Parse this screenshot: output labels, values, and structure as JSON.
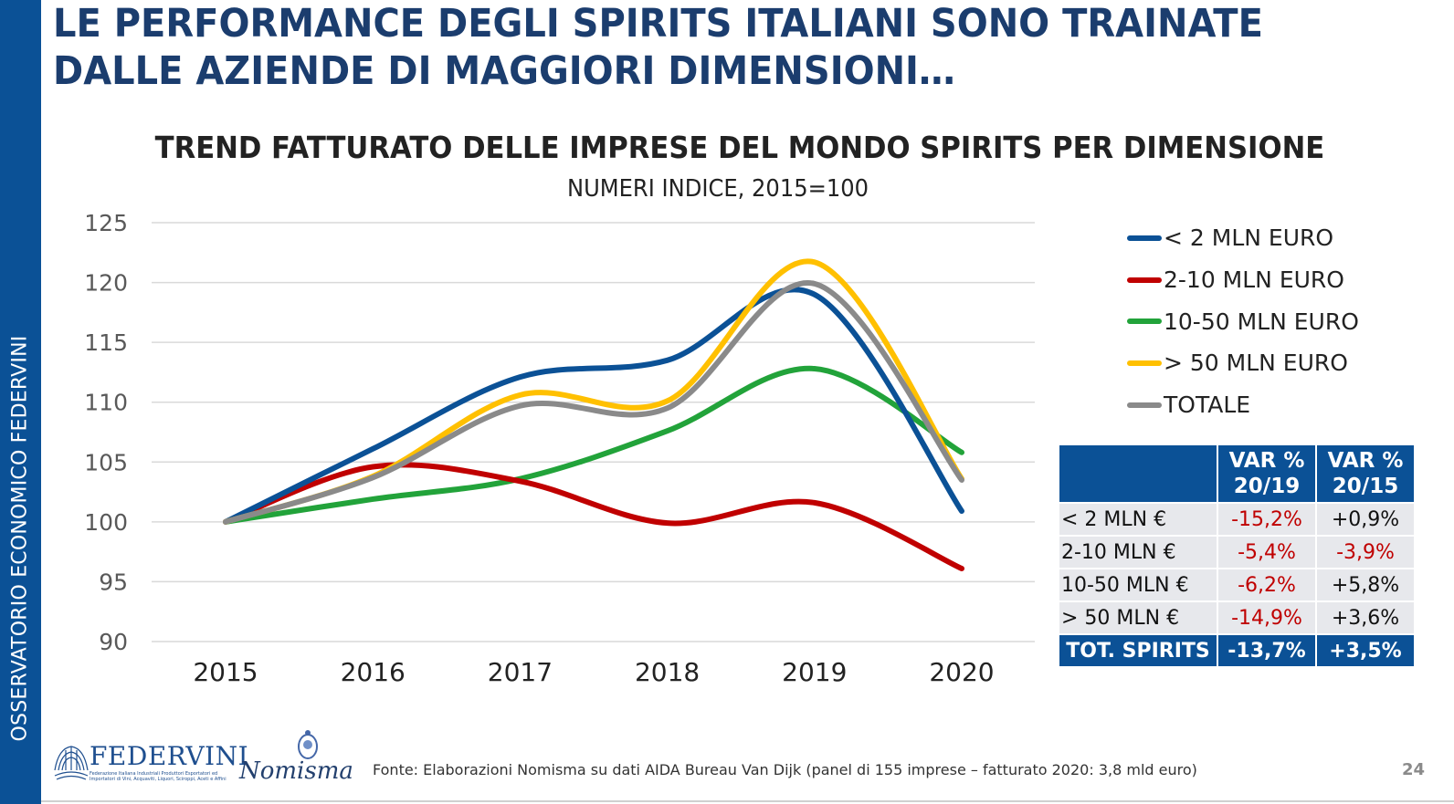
{
  "sidebar": {
    "text": "OSSERVATORIO ECONOMICO  FEDERVINI"
  },
  "header": {
    "title_line1": "LE PERFORMANCE DEGLI SPIRITS ITALIANI SONO TRAINATE",
    "title_line2": "DALLE AZIENDE DI MAGGIORI DIMENSIONI…"
  },
  "colors": {
    "brand_blue": "#0b5196",
    "title_navy": "#1b3d6e",
    "negative_red": "#c00000"
  },
  "chart_data": {
    "type": "line",
    "title": "TREND FATTURATO DELLE IMPRESE DEL MONDO SPIRITS PER DIMENSIONE",
    "subtitle": "NUMERI INDICE, 2015=100",
    "xlabel": "",
    "ylabel": "",
    "x": [
      "2015",
      "2016",
      "2017",
      "2018",
      "2019",
      "2020"
    ],
    "ylim": [
      90,
      125
    ],
    "yticks": [
      90,
      95,
      100,
      105,
      110,
      115,
      120,
      125
    ],
    "grid": true,
    "smooth": true,
    "legend_position": "right",
    "series": [
      {
        "name": "< 2 MLN EURO",
        "color": "#0b5196",
        "values": [
          100,
          106.1,
          112.1,
          113.5,
          119.0,
          100.9
        ]
      },
      {
        "name": "2-10 MLN EURO",
        "color": "#c00000",
        "values": [
          100,
          104.6,
          103.4,
          99.9,
          101.6,
          96.1
        ]
      },
      {
        "name": "10-50 MLN EURO",
        "color": "#22a33a",
        "values": [
          100,
          101.9,
          103.6,
          107.6,
          112.8,
          105.8
        ]
      },
      {
        "name": "> 50 MLN EURO",
        "color": "#ffc000",
        "values": [
          100,
          103.8,
          110.6,
          110.1,
          121.7,
          103.6
        ]
      },
      {
        "name": "TOTALE",
        "color": "#8a8a8a",
        "values": [
          100,
          103.7,
          109.7,
          109.5,
          119.9,
          103.5
        ]
      }
    ]
  },
  "table": {
    "headers": [
      "",
      "VAR %\n20/19",
      "VAR %\n20/15"
    ],
    "header_col2_line1": "VAR %",
    "header_col2_line2": "20/19",
    "header_col3_line1": "VAR %",
    "header_col3_line2": "20/15",
    "rows": [
      {
        "label": "< 2 MLN €",
        "var_20_19": "-15,2%",
        "var_20_15": "+0,9%"
      },
      {
        "label": "2-10 MLN €",
        "var_20_19": "-5,4%",
        "var_20_15": "-3,9%"
      },
      {
        "label": "10-50 MLN €",
        "var_20_19": "-6,2%",
        "var_20_15": "+5,8%"
      },
      {
        "label": "> 50 MLN €",
        "var_20_19": "-14,9%",
        "var_20_15": "+3,6%"
      }
    ],
    "total": {
      "label": "TOT. SPIRITS",
      "var_20_19": "-13,7%",
      "var_20_15": "+3,5%"
    }
  },
  "footer": {
    "source": "Fonte: Elaborazioni Nomisma su dati AIDA Bureau Van Dijk (panel di 155 imprese – fatturato 2020: 3,8 mld euro)",
    "page_number": "24",
    "logo_federvini": "FEDERVINI",
    "logo_federvini_sub": "Federazione Italiana Industriali Produttori Esportatori ed Importatori di Vini, Acquaviti, Liquori, Sciroppi, Aceti e Affini",
    "logo_nomisma": "Nomisma"
  }
}
